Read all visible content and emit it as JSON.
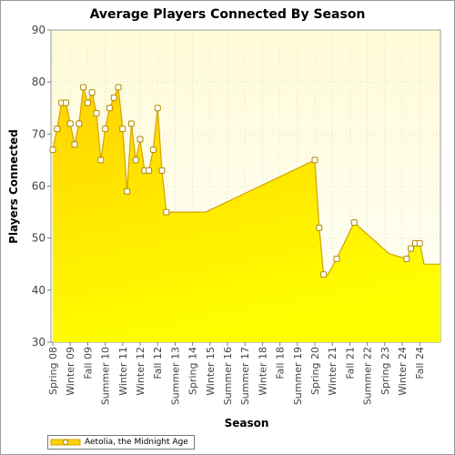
{
  "chart_data": {
    "type": "area",
    "title": "Average Players Connected By Season",
    "xlabel": "Season",
    "ylabel": "Players Connected",
    "ylim": [
      30,
      90
    ],
    "yticks": [
      30,
      40,
      50,
      60,
      70,
      80,
      90
    ],
    "grid": true,
    "legend_position": "bottom-left",
    "x_tick_labels": [
      "Spring 08",
      "Winter 09",
      "Fall 09",
      "Summer 10",
      "Winter 11",
      "Winter 12",
      "Fall 12",
      "Summer 13",
      "Spring 14",
      "Winter 15",
      "Summer 16",
      "Summer 17",
      "Winter 18",
      "Fall 18",
      "Summer 19",
      "Spring 20",
      "Winter 21",
      "Fall 21",
      "Summer 22",
      "Spring 23",
      "Winter 24",
      "Fall 24"
    ],
    "series": [
      {
        "name": "Aetolia, the Midnight Age",
        "x": [
          0,
          0.25,
          0.5,
          0.75,
          1,
          1.25,
          1.5,
          1.75,
          2,
          2.25,
          2.5,
          2.75,
          3,
          3.25,
          3.5,
          3.75,
          4,
          4.25,
          4.5,
          4.75,
          5,
          5.25,
          5.5,
          5.75,
          6,
          6.25,
          6.5,
          6.75,
          7,
          7.25,
          7.5,
          7.75,
          8,
          8.25,
          8.5,
          8.75,
          15.0,
          15.25,
          15.5,
          15.75,
          16.25,
          17.25,
          18.25,
          19.25,
          20.25,
          20.5,
          20.75,
          21.0,
          21.25,
          21.5,
          21.75
        ],
        "values": [
          67,
          71,
          76,
          76,
          72,
          68,
          72,
          79,
          76,
          78,
          74,
          65,
          71,
          75,
          77,
          79,
          71,
          59,
          72,
          65,
          69,
          63,
          63,
          67,
          75,
          63,
          55,
          55,
          55,
          55,
          55,
          55,
          55,
          55,
          55,
          55,
          65,
          52,
          43,
          43,
          46,
          53,
          50,
          47,
          46,
          48,
          49,
          49,
          45,
          45,
          45
        ],
        "markers": [
          1,
          1,
          1,
          1,
          1,
          1,
          1,
          1,
          1,
          1,
          1,
          1,
          1,
          1,
          1,
          1,
          1,
          1,
          1,
          1,
          1,
          1,
          1,
          1,
          1,
          1,
          1,
          0,
          0,
          0,
          0,
          0,
          0,
          0,
          0,
          0,
          1,
          1,
          1,
          0,
          1,
          1,
          0,
          0,
          1,
          1,
          1,
          1,
          0,
          0,
          0
        ]
      }
    ],
    "colors": {
      "area_top": "#ffd200",
      "area_bottom": "#ffff00",
      "line": "#d2a400",
      "marker_fill": "#ffffff",
      "marker_stroke": "#b08a00",
      "plot_bg_top": "#fffbd8",
      "plot_bg_bottom": "#fffff8"
    }
  }
}
